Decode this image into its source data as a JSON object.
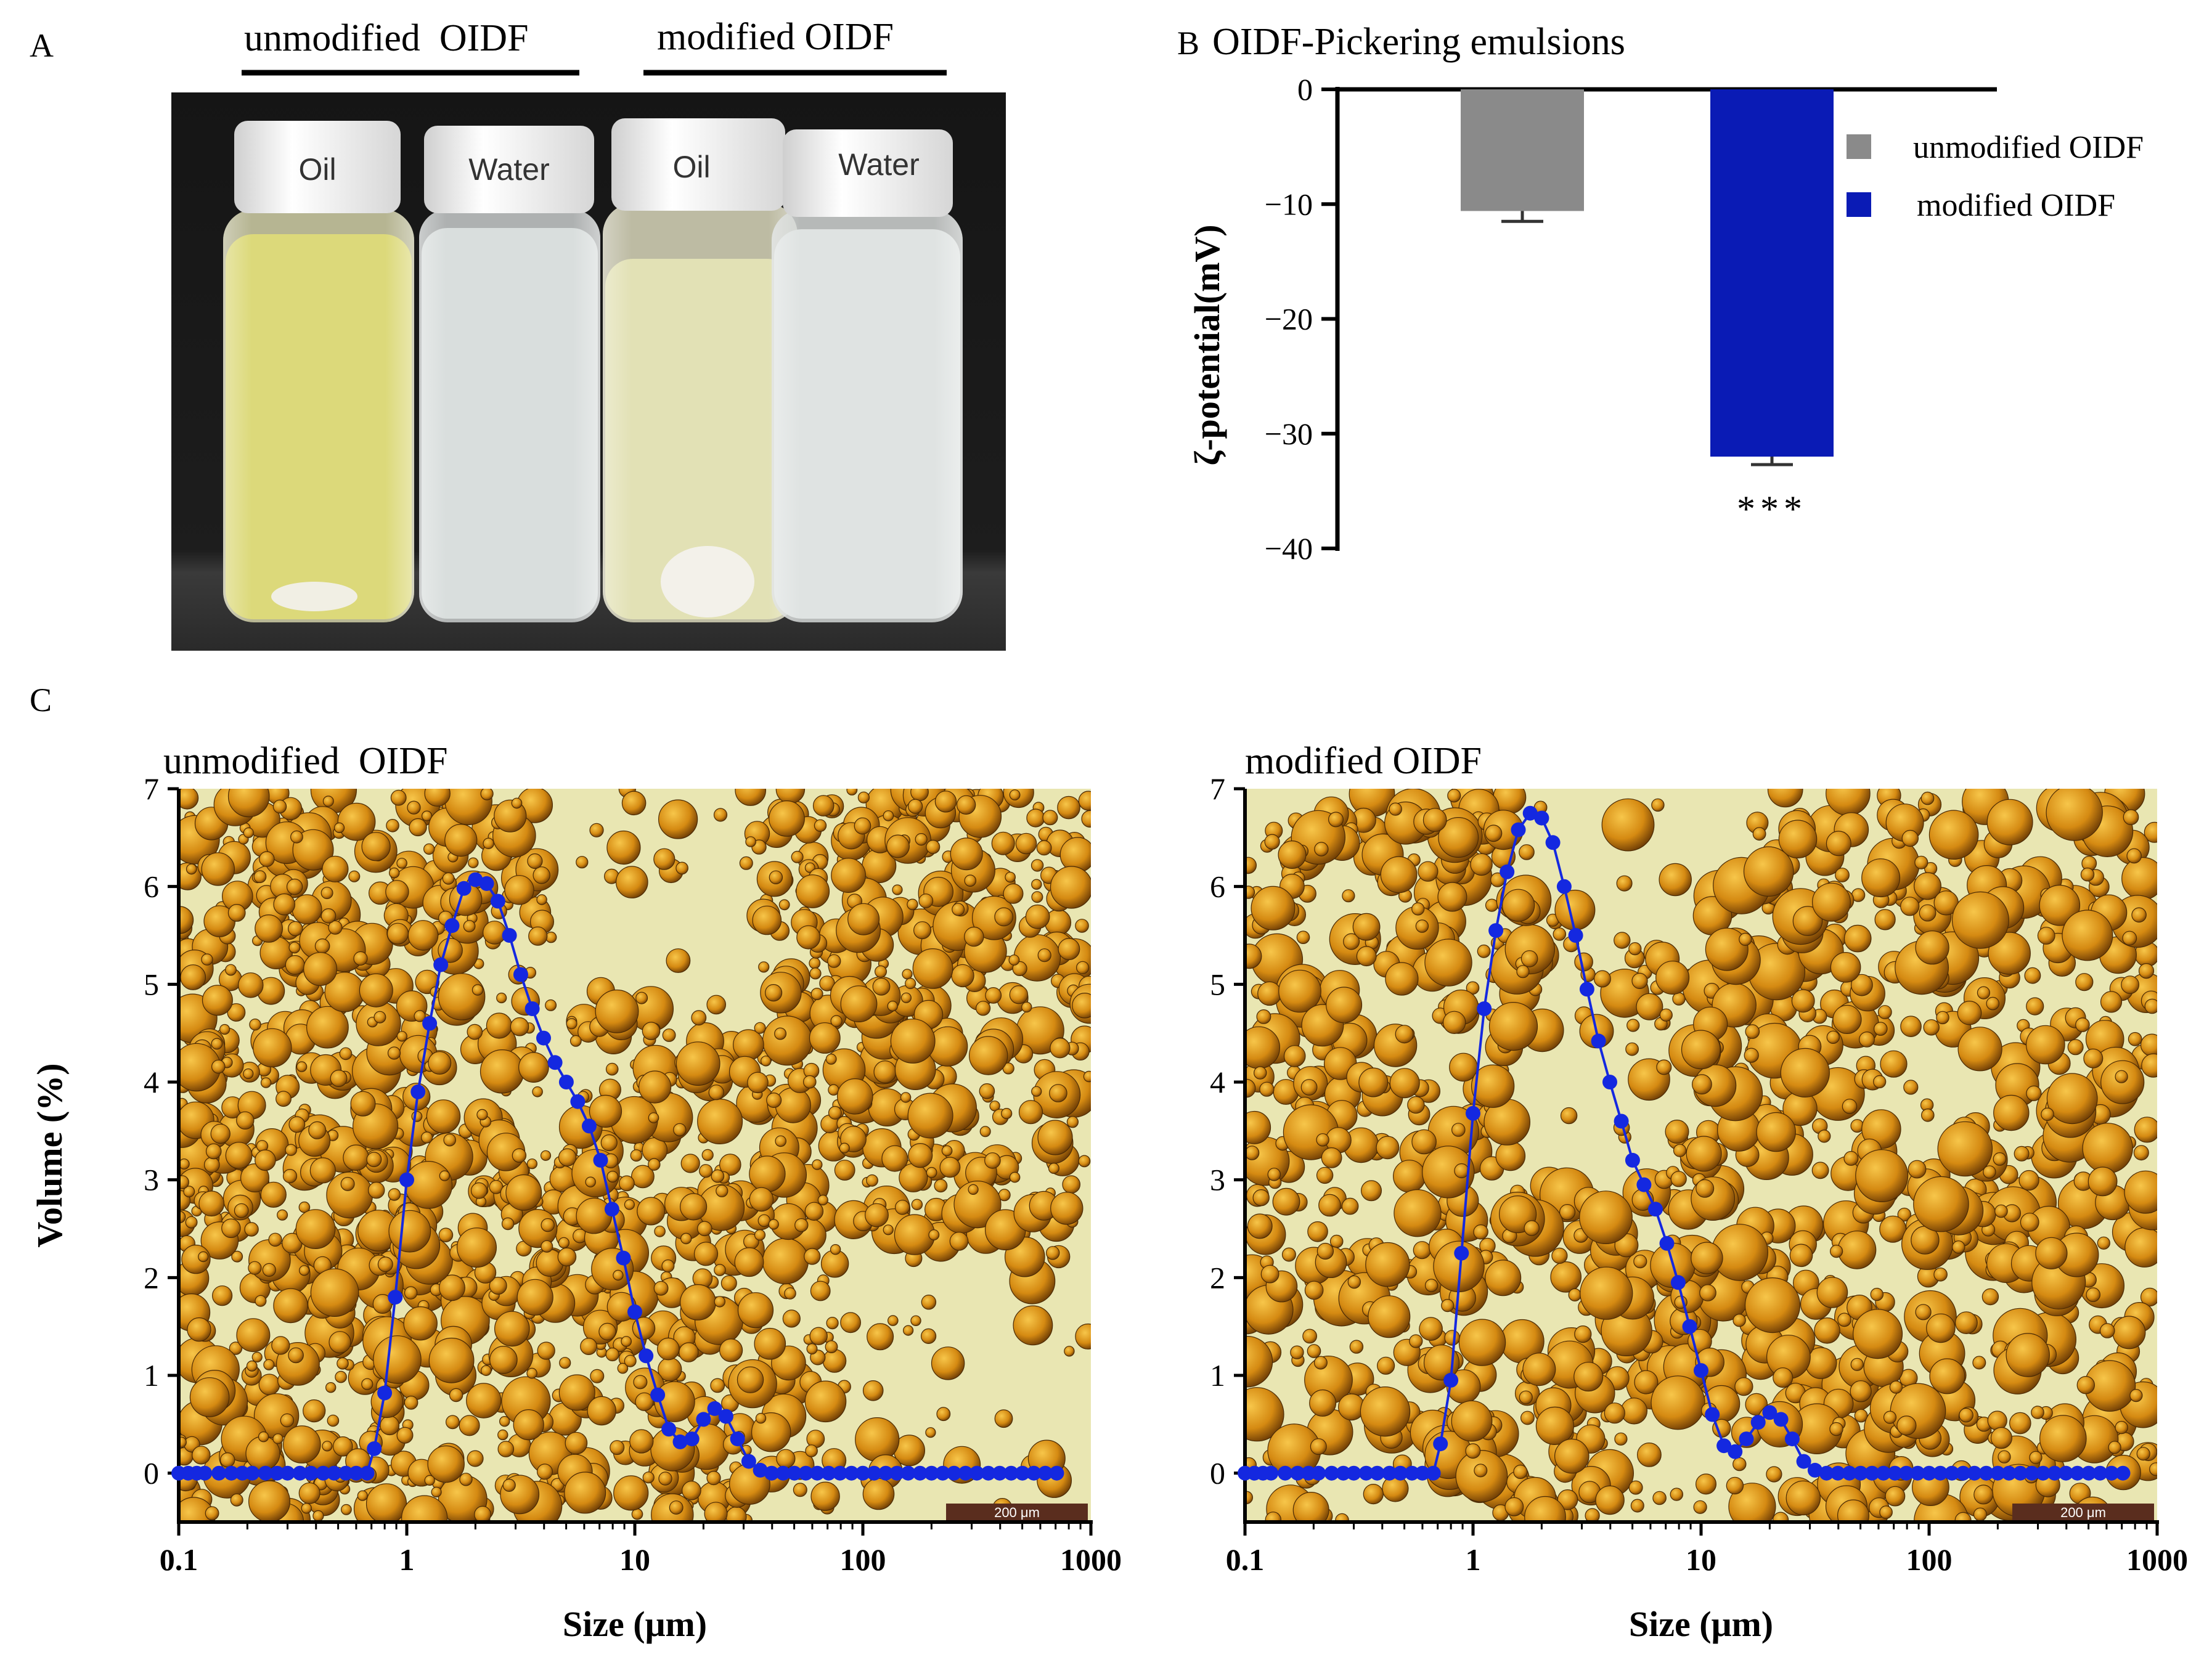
{
  "panels": {
    "a": {
      "label": "A",
      "groups": [
        "unmodified  OIDF",
        "modified OIDF"
      ],
      "vials": [
        {
          "cap": "Oil",
          "liquid": "#dcd97a"
        },
        {
          "cap": "Water",
          "liquid": "#d9dedd"
        },
        {
          "cap": "Oil",
          "liquid": "#e2e1b5"
        },
        {
          "cap": "Water",
          "liquid": "#dfe3e2"
        }
      ]
    },
    "b": {
      "label": "B"
    },
    "c": {
      "label": "C"
    }
  },
  "chart_data": [
    {
      "type": "bar",
      "title": "OIDF-Pickering emulsions",
      "ylabel": "ζ-potential(mV)",
      "xlabel": "",
      "ylim": [
        -40,
        0
      ],
      "yticks": [
        0,
        -10,
        -20,
        -30,
        -40
      ],
      "categories": [
        "unmodified OIDF",
        "modified OIDF"
      ],
      "values": [
        -10.6,
        -32.0
      ],
      "errors": [
        0.9,
        0.7
      ],
      "colors": [
        "#8a8a8a",
        "#0a1bb5"
      ],
      "legend": [
        "unmodified OIDF",
        "modified OIDF"
      ],
      "annotation": "***"
    },
    {
      "type": "line",
      "title": "unmodified  OIDF",
      "xlabel": "Size (μm)",
      "ylabel": "Volume (%)",
      "xscale": "log",
      "xlim": [
        0.1,
        1000
      ],
      "ylim": [
        -0.5,
        7
      ],
      "xticks": [
        "0.1",
        "1",
        "10",
        "100",
        "1000"
      ],
      "yticks": [
        0,
        1,
        2,
        3,
        4,
        5,
        6,
        7
      ],
      "scale_bar": "200 μm",
      "series": [
        {
          "name": "unmodified OIDF",
          "color": "#1428e0",
          "x": [
            0.1,
            0.11,
            0.12,
            0.13,
            0.15,
            0.17,
            0.19,
            0.21,
            0.24,
            0.27,
            0.3,
            0.34,
            0.38,
            0.43,
            0.48,
            0.54,
            0.6,
            0.67,
            0.72,
            0.8,
            0.89,
            1.0,
            1.12,
            1.26,
            1.41,
            1.58,
            1.78,
            2.0,
            2.24,
            2.51,
            2.82,
            3.16,
            3.55,
            3.98,
            4.47,
            5.01,
            5.62,
            6.31,
            7.08,
            7.94,
            8.91,
            10.0,
            11.2,
            12.6,
            14.1,
            15.8,
            17.8,
            20.0,
            22.4,
            25.1,
            28.2,
            31.6,
            35.5,
            39.8,
            44.7,
            50.1,
            56.2,
            63.1,
            70.8,
            79.4,
            89.1,
            100,
            112,
            126,
            141,
            158,
            178,
            200,
            224,
            251,
            282,
            316,
            355,
            398,
            447,
            501,
            562,
            631,
            708
          ],
          "values": [
            0,
            0,
            0,
            0,
            0,
            0,
            0,
            0,
            0,
            0,
            0,
            0,
            0,
            0,
            0,
            0,
            0,
            0,
            0.25,
            0.82,
            1.8,
            3.0,
            3.9,
            4.6,
            5.2,
            5.6,
            5.98,
            6.07,
            6.03,
            5.85,
            5.5,
            5.1,
            4.75,
            4.45,
            4.2,
            4.0,
            3.8,
            3.55,
            3.2,
            2.7,
            2.2,
            1.65,
            1.2,
            0.8,
            0.45,
            0.32,
            0.35,
            0.55,
            0.66,
            0.58,
            0.35,
            0.12,
            0.03,
            0,
            0,
            0,
            0,
            0,
            0,
            0,
            0,
            0,
            0,
            0,
            0,
            0,
            0,
            0,
            0,
            0,
            0,
            0,
            0,
            0,
            0,
            0,
            0,
            0,
            0
          ]
        }
      ]
    },
    {
      "type": "line",
      "title": "modified OIDF",
      "xlabel": "Size (μm)",
      "ylabel": "",
      "xscale": "log",
      "xlim": [
        0.1,
        1000
      ],
      "ylim": [
        -0.5,
        7
      ],
      "xticks": [
        "0.1",
        "1",
        "10",
        "100",
        "1000"
      ],
      "yticks": [
        0,
        1,
        2,
        3,
        4,
        5,
        6,
        7
      ],
      "scale_bar": "200 μm",
      "series": [
        {
          "name": "modified OIDF",
          "color": "#1428e0",
          "x": [
            0.1,
            0.11,
            0.12,
            0.13,
            0.15,
            0.17,
            0.19,
            0.21,
            0.24,
            0.27,
            0.3,
            0.34,
            0.38,
            0.43,
            0.48,
            0.54,
            0.6,
            0.67,
            0.72,
            0.8,
            0.89,
            1.0,
            1.12,
            1.26,
            1.41,
            1.58,
            1.78,
            2.0,
            2.24,
            2.51,
            2.82,
            3.16,
            3.55,
            3.98,
            4.47,
            5.01,
            5.62,
            6.31,
            7.08,
            7.94,
            8.91,
            10.0,
            11.2,
            12.6,
            14.1,
            15.8,
            17.8,
            20.0,
            22.4,
            25.1,
            28.2,
            31.6,
            35.5,
            39.8,
            44.7,
            50.1,
            56.2,
            63.1,
            70.8,
            79.4,
            89.1,
            100,
            112,
            126,
            141,
            158,
            178,
            200,
            224,
            251,
            282,
            316,
            355,
            398,
            447,
            501,
            562,
            631,
            708
          ],
          "values": [
            0,
            0,
            0,
            0,
            0,
            0,
            0,
            0,
            0,
            0,
            0,
            0,
            0,
            0,
            0,
            0,
            0,
            0,
            0.3,
            0.95,
            2.25,
            3.68,
            4.75,
            5.55,
            6.15,
            6.58,
            6.75,
            6.7,
            6.45,
            6.0,
            5.5,
            4.95,
            4.42,
            4.0,
            3.6,
            3.2,
            2.95,
            2.7,
            2.35,
            1.95,
            1.5,
            1.05,
            0.6,
            0.28,
            0.22,
            0.35,
            0.52,
            0.62,
            0.55,
            0.35,
            0.12,
            0.03,
            0,
            0,
            0,
            0,
            0,
            0,
            0,
            0,
            0,
            0,
            0,
            0,
            0,
            0,
            0,
            0,
            0,
            0,
            0,
            0,
            0,
            0,
            0,
            0,
            0,
            0,
            0
          ]
        }
      ]
    }
  ]
}
